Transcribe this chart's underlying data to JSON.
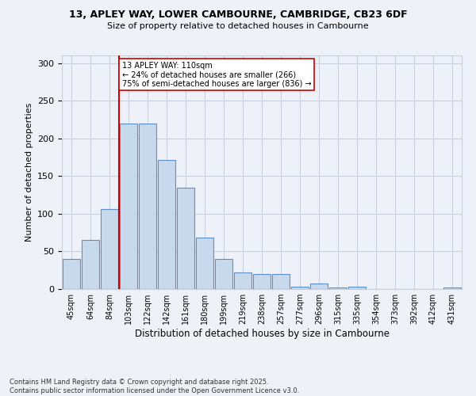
{
  "title_line1": "13, APLEY WAY, LOWER CAMBOURNE, CAMBRIDGE, CB23 6DF",
  "title_line2": "Size of property relative to detached houses in Cambourne",
  "xlabel": "Distribution of detached houses by size in Cambourne",
  "ylabel": "Number of detached properties",
  "categories": [
    "45sqm",
    "64sqm",
    "84sqm",
    "103sqm",
    "122sqm",
    "142sqm",
    "161sqm",
    "180sqm",
    "199sqm",
    "219sqm",
    "238sqm",
    "257sqm",
    "277sqm",
    "296sqm",
    "315sqm",
    "335sqm",
    "354sqm",
    "373sqm",
    "392sqm",
    "412sqm",
    "431sqm"
  ],
  "values": [
    40,
    65,
    106,
    220,
    220,
    171,
    135,
    68,
    40,
    22,
    20,
    20,
    3,
    7,
    2,
    3,
    0,
    0,
    0,
    0,
    2
  ],
  "bar_color": "#c9d9ec",
  "bar_edge_color": "#5b8fc9",
  "grid_color": "#c8d0de",
  "bg_color": "#eef2f8",
  "red_line_x": 2.5,
  "annotation_text": "13 APLEY WAY: 110sqm\n← 24% of detached houses are smaller (266)\n75% of semi-detached houses are larger (836) →",
  "annotation_box_color": "#ffffff",
  "annotation_box_edge": "#cc0000",
  "red_line_color": "#cc0000",
  "ylim": [
    0,
    310
  ],
  "yticks": [
    0,
    50,
    100,
    150,
    200,
    250,
    300
  ],
  "footer": "Contains HM Land Registry data © Crown copyright and database right 2025.\nContains public sector information licensed under the Open Government Licence v3.0."
}
